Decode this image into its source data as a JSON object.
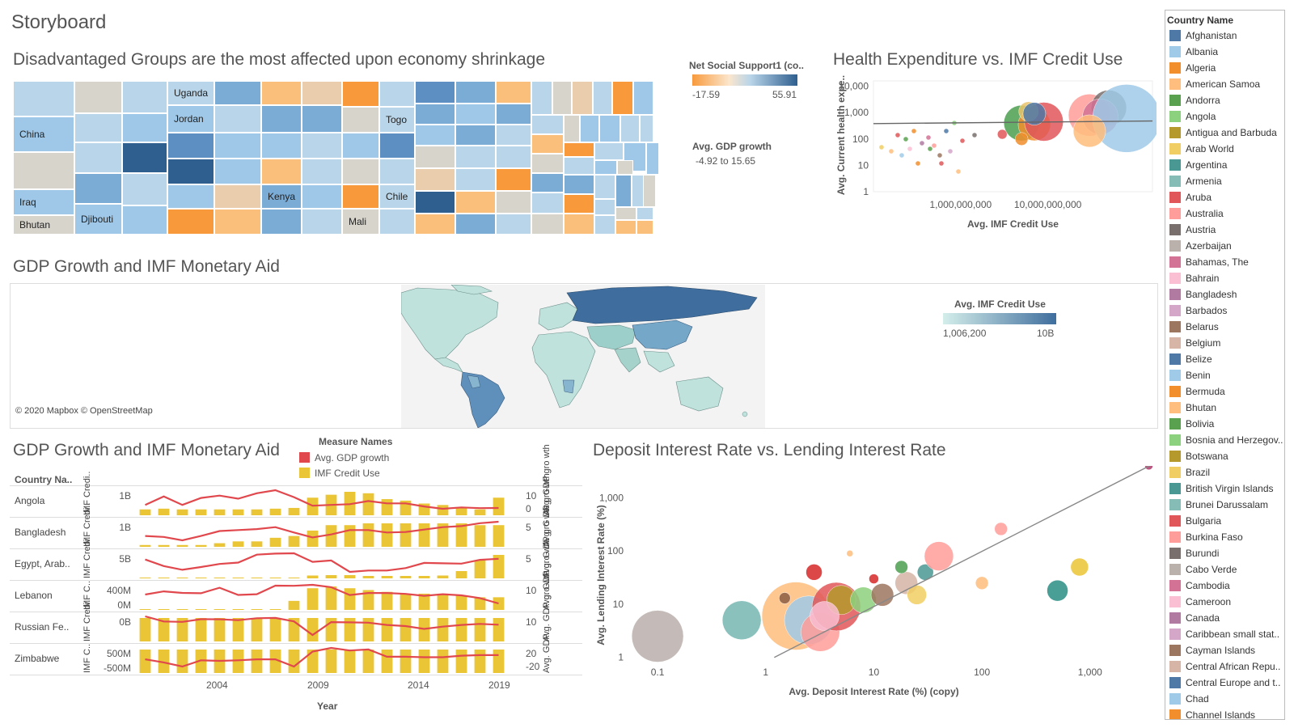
{
  "page": {
    "title": "Storyboard"
  },
  "treemap": {
    "title": "Disadvantaged Groups are the most affected upon economy shrinkage",
    "labels": {
      "china": "China",
      "iraq": "Iraq",
      "bhutan": "Bhutan",
      "djibouti": "Djibouti",
      "uganda": "Uganda",
      "jordan": "Jordan",
      "kenya": "Kenya",
      "mali": "Mali",
      "togo": "Togo",
      "chile": "Chile"
    },
    "legend": {
      "title": "Net Social Support1 (co..",
      "min": "-17.59",
      "max": "55.91"
    },
    "size_legend": {
      "title": "Avg. GDP growth",
      "range": "-4.92 to 15.65"
    },
    "colors": {
      "orange": "#f89a3c",
      "light_orange": "#fbbf7c",
      "beige": "#e9cdac",
      "grey": "#d7d4cc",
      "pale_blue": "#b9d5e9",
      "light_blue": "#9fc8e8",
      "mid_blue": "#7aacd6",
      "blue": "#5d8fc3",
      "dark_blue": "#2f5f8f"
    }
  },
  "health_chart": {
    "title": "Health Expenditure vs. IMF Credit Use",
    "chart_data": {
      "type": "scatter",
      "xlabel": "Avg. IMF Credit Use",
      "ylabel": "Avg. Current health expe..",
      "x_scale": "log",
      "y_scale": "log",
      "x_ticks": [
        "1,000,000,000",
        "10,000,000,000"
      ],
      "y_ticks": [
        "10,000",
        "1,000",
        "100",
        "10",
        "1"
      ],
      "trend_line": true,
      "points": [
        {
          "x": 5000000000,
          "y": 400,
          "color": "#4c9f50"
        },
        {
          "x": 7000000000,
          "y": 350,
          "color": "#f28e2b"
        },
        {
          "x": 9000000000,
          "y": 450,
          "color": "#e1575a"
        },
        {
          "x": 30000000000,
          "y": 800,
          "color": "#ff9d9a"
        },
        {
          "x": 50000000000,
          "y": 1500,
          "color": "#79706e"
        },
        {
          "x": 40000000000,
          "y": 700,
          "color": "#d37295"
        },
        {
          "x": 80000000000,
          "y": 600,
          "color": "#a0cbe8"
        },
        {
          "x": 6000000000,
          "y": 1100,
          "color": "#e9c46a"
        },
        {
          "x": 7000000000,
          "y": 900,
          "color": "#4e79a7"
        },
        {
          "x": 5000000000,
          "y": 100,
          "color": "#f28e2b"
        },
        {
          "x": 30000000000,
          "y": 200,
          "color": "#ffbe7d"
        },
        {
          "x": 3000000000,
          "y": 150,
          "color": "#e15759"
        }
      ]
    }
  },
  "map_panel": {
    "title": "GDP Growth and IMF Monetary Aid",
    "attribution": "© 2020 Mapbox © OpenStreetMap",
    "legend": {
      "title": "Avg. IMF Credit Use",
      "min": "1,006,200",
      "max": "10B"
    }
  },
  "line_panel": {
    "title": "GDP Growth and IMF Monetary Aid",
    "measure_legend": {
      "title": "Measure Names",
      "items": [
        {
          "label": "Avg. GDP growth",
          "color": "#e0484d"
        },
        {
          "label": "IMF Credit Use",
          "color": "#eac535"
        }
      ]
    },
    "column_header": "Country Na..",
    "xlabel": "Year",
    "x_ticks": [
      "2004",
      "2009",
      "2014",
      "2019"
    ],
    "chart_data": {
      "type": "bar",
      "years": [
        2000,
        2001,
        2002,
        2003,
        2004,
        2005,
        2006,
        2007,
        2008,
        2009,
        2010,
        2011,
        2012,
        2013,
        2014,
        2015,
        2016,
        2017,
        2018,
        2019
      ],
      "rows": [
        {
          "country": "Angola",
          "left_axis": "IMF Credi..",
          "tick_left": [
            "1B"
          ],
          "right_axis": "Avg. GDP gro wth",
          "tick_right": [
            "10",
            "0"
          ],
          "imf": [
            0.4,
            0.45,
            0.4,
            0.4,
            0.4,
            0.4,
            0.4,
            0.45,
            0.5,
            1.2,
            1.4,
            1.6,
            1.5,
            1.1,
            1.0,
            0.8,
            0.7,
            0.5,
            0.4,
            1.2
          ],
          "gdp": [
            3,
            14,
            3,
            12,
            15,
            11,
            18,
            22,
            13,
            2,
            3,
            4,
            8,
            5,
            5,
            1,
            -2,
            -0.2,
            -1.2,
            -1
          ]
        },
        {
          "country": "Bangladesh",
          "left_axis": "IMF Credi..",
          "tick_left": [
            "1B"
          ],
          "right_axis": "Avg. G DP gro wth",
          "tick_right": [
            "5"
          ],
          "imf": [
            0.1,
            0.1,
            0.1,
            0.1,
            0.2,
            0.3,
            0.3,
            0.5,
            0.6,
            0.9,
            1.2,
            1.2,
            1.3,
            1.3,
            1.3,
            1.3,
            1.3,
            1.3,
            1.2,
            1.2
          ],
          "gdp": [
            5.3,
            5.1,
            4.4,
            5.3,
            6.3,
            6.5,
            6.7,
            7.1,
            6.0,
            5.0,
            5.6,
            6.5,
            6.5,
            6.0,
            6.1,
            6.6,
            7.1,
            7.3,
            7.9,
            8.2
          ]
        },
        {
          "country": "Egypt, Arab..",
          "left_axis": "IMF Credi..",
          "tick_left": [
            "5B"
          ],
          "right_axis": "Avg. G DP gro wth",
          "tick_right": [
            "5"
          ],
          "imf": [
            0.1,
            0.1,
            0.1,
            0.1,
            0.1,
            0.1,
            0.1,
            0.1,
            0.1,
            0.7,
            0.8,
            0.8,
            0.6,
            0.6,
            0.6,
            0.6,
            0.7,
            1.8,
            4.5,
            5.8
          ],
          "gdp": [
            5.4,
            3.5,
            2.4,
            3.2,
            4.1,
            4.5,
            6.8,
            7.1,
            7.2,
            4.7,
            5.1,
            1.8,
            2.2,
            2.2,
            2.9,
            4.4,
            4.3,
            4.2,
            5.3,
            5.6
          ]
        },
        {
          "country": "Lebanon",
          "left_axis": "IMF C..",
          "tick_left": [
            "400M",
            "0M"
          ],
          "right_axis": "Avg. GDP gro wth",
          "tick_right": [
            "10"
          ],
          "imf": [
            0,
            0,
            0,
            0,
            0,
            0,
            0,
            0,
            50,
            120,
            130,
            120,
            110,
            100,
            90,
            90,
            90,
            80,
            70,
            70
          ],
          "gdp": [
            1.3,
            4.2,
            2.8,
            2.5,
            7.5,
            1.0,
            1.6,
            9.4,
            9.2,
            10.1,
            8.0,
            0.9,
            2.7,
            2.7,
            1.9,
            0.2,
            1.6,
            0.6,
            -1.9,
            -6.7
          ]
        },
        {
          "country": "Russian Fe..",
          "left_axis": "IMF Credi..",
          "tick_left": [
            "0B"
          ],
          "right_axis": "Avg. GDP gro wth",
          "tick_right": [
            "10"
          ],
          "imf": [
            0.6,
            0.6,
            0.6,
            0.6,
            0.6,
            0.6,
            0.6,
            0.6,
            0.6,
            0.6,
            0.6,
            0.6,
            0.6,
            0.6,
            0.6,
            0.6,
            0.6,
            0.6,
            0.6,
            0.6
          ],
          "gdp": [
            10,
            5.1,
            4.7,
            7.3,
            7.2,
            6.4,
            8.2,
            8.5,
            5.2,
            -7.8,
            4.5,
            4.3,
            4.0,
            1.8,
            0.7,
            -2.0,
            0.2,
            1.8,
            2.8,
            2.0
          ]
        },
        {
          "country": "Zimbabwe",
          "left_axis": "IMF C..",
          "tick_left": [
            "500M",
            "-500M"
          ],
          "right_axis": "Avg. GDP..",
          "tick_right": [
            "20",
            "-20"
          ],
          "imf": [
            400,
            400,
            400,
            400,
            400,
            400,
            400,
            400,
            400,
            400,
            400,
            400,
            400,
            400,
            400,
            400,
            400,
            400,
            400,
            400
          ],
          "gdp": [
            -3,
            -9,
            -17,
            -5,
            -6,
            -5,
            -3,
            -3,
            -17,
            12,
            19,
            14,
            16,
            2,
            2,
            1,
            1,
            4,
            5,
            5
          ]
        }
      ]
    }
  },
  "deposit_chart": {
    "title": "Deposit Interest Rate vs. Lending Interest Rate",
    "chart_data": {
      "type": "scatter",
      "xlabel": "Avg. Deposit Interest Rate (%) (copy)",
      "ylabel": "Avg. Lending Interest Rate (%)",
      "x_scale": "log",
      "y_scale": "log",
      "x_ticks": [
        "0.1",
        "1",
        "10",
        "100",
        "1,000"
      ],
      "y_ticks": [
        "1,000",
        "100",
        "10",
        "1"
      ],
      "trend_line": true,
      "points": [
        {
          "x": 0.1,
          "y": 2.5,
          "size": 32,
          "color": "#bab0ac"
        },
        {
          "x": 0.6,
          "y": 5,
          "size": 24,
          "color": "#76b7b2"
        },
        {
          "x": 1.9,
          "y": 6,
          "size": 42,
          "color": "#ffbe7d"
        },
        {
          "x": 2.5,
          "y": 5,
          "size": 30,
          "color": "#a0cbe8"
        },
        {
          "x": 3.2,
          "y": 3,
          "size": 24,
          "color": "#ff9d9a"
        },
        {
          "x": 4.5,
          "y": 9,
          "size": 30,
          "color": "#e15759"
        },
        {
          "x": 5,
          "y": 12,
          "size": 18,
          "color": "#b6992d"
        },
        {
          "x": 3.5,
          "y": 6,
          "size": 18,
          "color": "#fabfd2"
        },
        {
          "x": 8,
          "y": 12,
          "size": 16,
          "color": "#8cd17d"
        },
        {
          "x": 12,
          "y": 15,
          "size": 14,
          "color": "#9d7660"
        },
        {
          "x": 20,
          "y": 25,
          "size": 14,
          "color": "#d7b5a6"
        },
        {
          "x": 30,
          "y": 40,
          "size": 10,
          "color": "#499894"
        },
        {
          "x": 40,
          "y": 80,
          "size": 18,
          "color": "#ff9d9a"
        },
        {
          "x": 25,
          "y": 15,
          "size": 12,
          "color": "#f1ce63"
        },
        {
          "x": 2.8,
          "y": 40,
          "size": 10,
          "color": "#d62728"
        },
        {
          "x": 6,
          "y": 90,
          "size": 4,
          "color": "#ffbe7d"
        },
        {
          "x": 150,
          "y": 260,
          "size": 8,
          "color": "#ff9d9a"
        },
        {
          "x": 100,
          "y": 25,
          "size": 8,
          "color": "#ffbe7d"
        },
        {
          "x": 500,
          "y": 18,
          "size": 13,
          "color": "#2a8f84"
        },
        {
          "x": 800,
          "y": 50,
          "size": 11,
          "color": "#eac535"
        },
        {
          "x": 3500,
          "y": 4000,
          "size": 5,
          "color": "#b03a6a"
        },
        {
          "x": 18,
          "y": 50,
          "size": 8,
          "color": "#4c9f50"
        },
        {
          "x": 10,
          "y": 30,
          "size": 6,
          "color": "#d62728"
        },
        {
          "x": 1.5,
          "y": 13,
          "size": 7,
          "color": "#8c5e46"
        }
      ]
    }
  },
  "country_legend": {
    "title": "Country Name",
    "items": [
      {
        "label": "Afghanistan",
        "color": "#4e79a7"
      },
      {
        "label": "Albania",
        "color": "#a0cbe8"
      },
      {
        "label": "Algeria",
        "color": "#f28e2b"
      },
      {
        "label": "American Samoa",
        "color": "#ffbe7d"
      },
      {
        "label": "Andorra",
        "color": "#59a14f"
      },
      {
        "label": "Angola",
        "color": "#8cd17d"
      },
      {
        "label": "Antigua and Barbuda",
        "color": "#b6992d"
      },
      {
        "label": "Arab World",
        "color": "#f1ce63"
      },
      {
        "label": "Argentina",
        "color": "#499894"
      },
      {
        "label": "Armenia",
        "color": "#86bcb6"
      },
      {
        "label": "Aruba",
        "color": "#e15759"
      },
      {
        "label": "Australia",
        "color": "#ff9d9a"
      },
      {
        "label": "Austria",
        "color": "#79706e"
      },
      {
        "label": "Azerbaijan",
        "color": "#bab0ac"
      },
      {
        "label": "Bahamas, The",
        "color": "#d37295"
      },
      {
        "label": "Bahrain",
        "color": "#fabfd2"
      },
      {
        "label": "Bangladesh",
        "color": "#b07aa1"
      },
      {
        "label": "Barbados",
        "color": "#d4a6c8"
      },
      {
        "label": "Belarus",
        "color": "#9d7660"
      },
      {
        "label": "Belgium",
        "color": "#d7b5a6"
      },
      {
        "label": "Belize",
        "color": "#4e79a7"
      },
      {
        "label": "Benin",
        "color": "#a0cbe8"
      },
      {
        "label": "Bermuda",
        "color": "#f28e2b"
      },
      {
        "label": "Bhutan",
        "color": "#ffbe7d"
      },
      {
        "label": "Bolivia",
        "color": "#59a14f"
      },
      {
        "label": "Bosnia and Herzegov..",
        "color": "#8cd17d"
      },
      {
        "label": "Botswana",
        "color": "#b6992d"
      },
      {
        "label": "Brazil",
        "color": "#f1ce63"
      },
      {
        "label": "British Virgin Islands",
        "color": "#499894"
      },
      {
        "label": "Brunei Darussalam",
        "color": "#86bcb6"
      },
      {
        "label": "Bulgaria",
        "color": "#e15759"
      },
      {
        "label": "Burkina Faso",
        "color": "#ff9d9a"
      },
      {
        "label": "Burundi",
        "color": "#79706e"
      },
      {
        "label": "Cabo Verde",
        "color": "#bab0ac"
      },
      {
        "label": "Cambodia",
        "color": "#d37295"
      },
      {
        "label": "Cameroon",
        "color": "#fabfd2"
      },
      {
        "label": "Canada",
        "color": "#b07aa1"
      },
      {
        "label": "Caribbean small stat..",
        "color": "#d4a6c8"
      },
      {
        "label": "Cayman Islands",
        "color": "#9d7660"
      },
      {
        "label": "Central African Repu..",
        "color": "#d7b5a6"
      },
      {
        "label": "Central Europe and t..",
        "color": "#4e79a7"
      },
      {
        "label": "Chad",
        "color": "#a0cbe8"
      },
      {
        "label": "Channel Islands",
        "color": "#f28e2b"
      }
    ]
  }
}
